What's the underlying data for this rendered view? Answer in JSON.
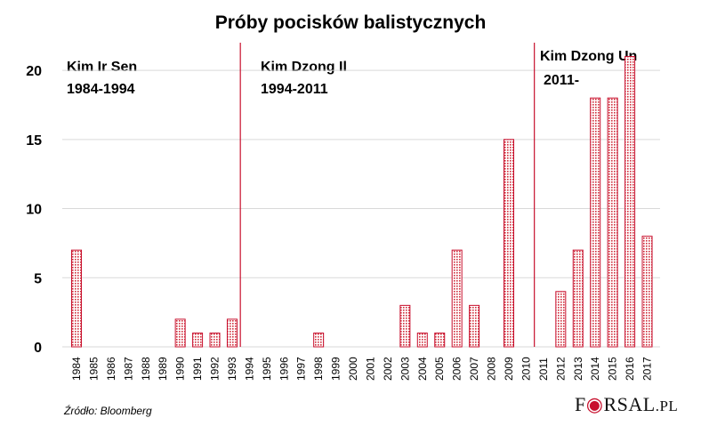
{
  "colors": {
    "accent": "#c8102e",
    "grid": "#d9d9d9",
    "text": "#000000"
  },
  "eras": [
    {
      "name": "Kim Ir Sen",
      "years": "1984-1994"
    },
    {
      "name": "Kim Dzong Il",
      "years": "1994-2011"
    },
    {
      "name": "Kim Dzong Un",
      "years": "2011-"
    }
  ],
  "source": "Źródło: Bloomberg",
  "logo": {
    "pre": "F",
    "post": "RSAL",
    "dot": ".PL"
  },
  "chart_data": {
    "type": "bar",
    "title": "Próby pocisków balistycznych",
    "xlabel": "",
    "ylabel": "",
    "ylim": [
      0,
      22
    ],
    "yticks": [
      0,
      5,
      10,
      15,
      20
    ],
    "grid": true,
    "era_dividers_after_year": [
      "1993",
      "2010"
    ],
    "categories": [
      "1984",
      "1985",
      "1986",
      "1987",
      "1988",
      "1989",
      "1990",
      "1991",
      "1992",
      "1993",
      "1994",
      "1995",
      "1996",
      "1997",
      "1998",
      "1999",
      "2000",
      "2001",
      "2002",
      "2003",
      "2004",
      "2005",
      "2006",
      "2007",
      "2008",
      "2009",
      "2010",
      "2011",
      "2012",
      "2013",
      "2014",
      "2015",
      "2016",
      "2017"
    ],
    "values": [
      7,
      0,
      0,
      0,
      0,
      0,
      2,
      1,
      1,
      2,
      0,
      0,
      0,
      0,
      1,
      0,
      0,
      0,
      0,
      3,
      1,
      1,
      7,
      3,
      0,
      15,
      0,
      0,
      4,
      7,
      18,
      18,
      21,
      8
    ]
  }
}
